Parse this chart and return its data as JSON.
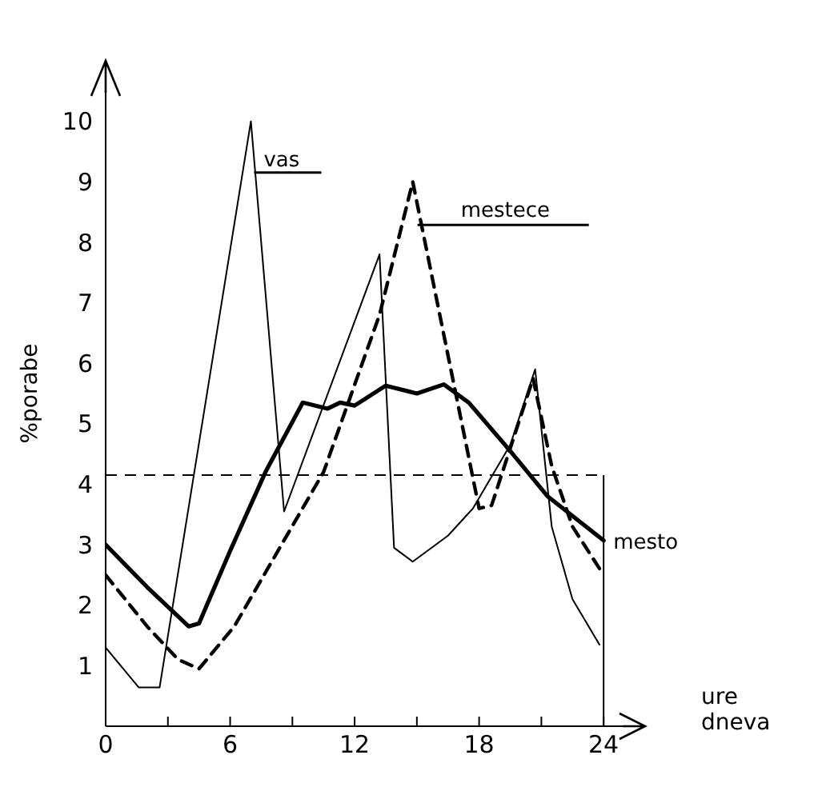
{
  "chart_data": {
    "type": "line",
    "xlabel": "ure dneva",
    "ylabel": "%porabe",
    "xlim": [
      0,
      26
    ],
    "ylim": [
      0,
      11
    ],
    "xticks": [
      0,
      {
        "value": 3,
        "label": null
      },
      6,
      {
        "value": 9,
        "label": null
      },
      12,
      {
        "value": 15,
        "label": null
      },
      18,
      {
        "value": 21,
        "label": null
      },
      24
    ],
    "yticks": [
      1,
      2,
      3,
      4,
      5,
      6,
      7,
      8,
      9,
      10
    ],
    "grid": false,
    "legend": false,
    "marker": "none",
    "series": [
      {
        "name": "vas",
        "color": "#000000",
        "line_style": "solid",
        "x": [
          0,
          1.6,
          2.6,
          7.0,
          8.6,
          13.2,
          13.9,
          14.8,
          16.5,
          17.7,
          19.5,
          20.7,
          21.5,
          22.5,
          23.8
        ],
        "values": [
          1.3,
          0.64,
          0.64,
          10,
          3.55,
          7.8,
          2.95,
          2.72,
          3.15,
          3.6,
          4.65,
          5.9,
          3.3,
          2.1,
          1.35
        ]
      },
      {
        "name": "mestece",
        "color": "#000000",
        "line_style": "dashed",
        "x": [
          0,
          2,
          3.5,
          4.5,
          6.2,
          10.5,
          13.2,
          14.8,
          18.0,
          18.6,
          20.6,
          21.5,
          22.5,
          24
        ],
        "values": [
          2.5,
          1.65,
          1.1,
          0.95,
          1.65,
          4.2,
          6.8,
          9.0,
          3.6,
          3.65,
          5.75,
          4.3,
          3.3,
          2.5
        ]
      },
      {
        "name": "mesto",
        "color": "#000000",
        "line_style": "solid",
        "x": [
          0,
          2,
          4,
          4.5,
          6,
          7.7,
          9.5,
          10.7,
          11.3,
          12,
          13.5,
          15,
          16.3,
          17.5,
          19.5,
          21.3,
          24
        ],
        "values": [
          3.0,
          2.3,
          1.65,
          1.7,
          2.9,
          4.2,
          5.35,
          5.25,
          5.35,
          5.3,
          5.63,
          5.5,
          5.65,
          5.35,
          4.55,
          3.8,
          3.07
        ]
      }
    ],
    "ref_lines": [
      {
        "axis": "y",
        "value": 4.15,
        "color": "#000000",
        "line_style": "dashed"
      },
      {
        "axis": "x",
        "value": 24,
        "color": "#000000",
        "line_style": "solid"
      }
    ]
  }
}
